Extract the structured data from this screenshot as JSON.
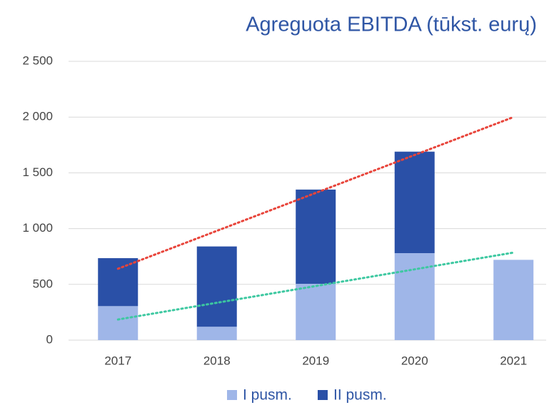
{
  "chart_data": {
    "type": "stacked_bar",
    "title": "Agreguota EBITDA (tūkst. eurų)",
    "categories": [
      "2017",
      "2018",
      "2019",
      "2020",
      "2021"
    ],
    "series": [
      {
        "name": "I pusm.",
        "color": "#9fb6e8",
        "values": [
          305,
          120,
          505,
          780,
          720
        ]
      },
      {
        "name": "II pusm.",
        "color": "#2a50a7",
        "values": [
          430,
          720,
          845,
          910,
          null
        ]
      }
    ],
    "trendlines": [
      {
        "color": "#e8443a",
        "values": [
          640,
          980,
          1320,
          1660,
          2000
        ]
      },
      {
        "color": "#3cc8a0",
        "values": [
          185,
          335,
          485,
          635,
          785
        ]
      }
    ],
    "ylim": [
      0,
      2500
    ],
    "yticks": [
      0,
      500,
      {
        "value": 1000,
        "label": "1 000"
      },
      {
        "value": 1500,
        "label": "1 500"
      },
      {
        "value": 2000,
        "label": "2 000"
      },
      {
        "value": 2500,
        "label": "2 500"
      }
    ],
    "grid": true,
    "legend": "bottom"
  }
}
